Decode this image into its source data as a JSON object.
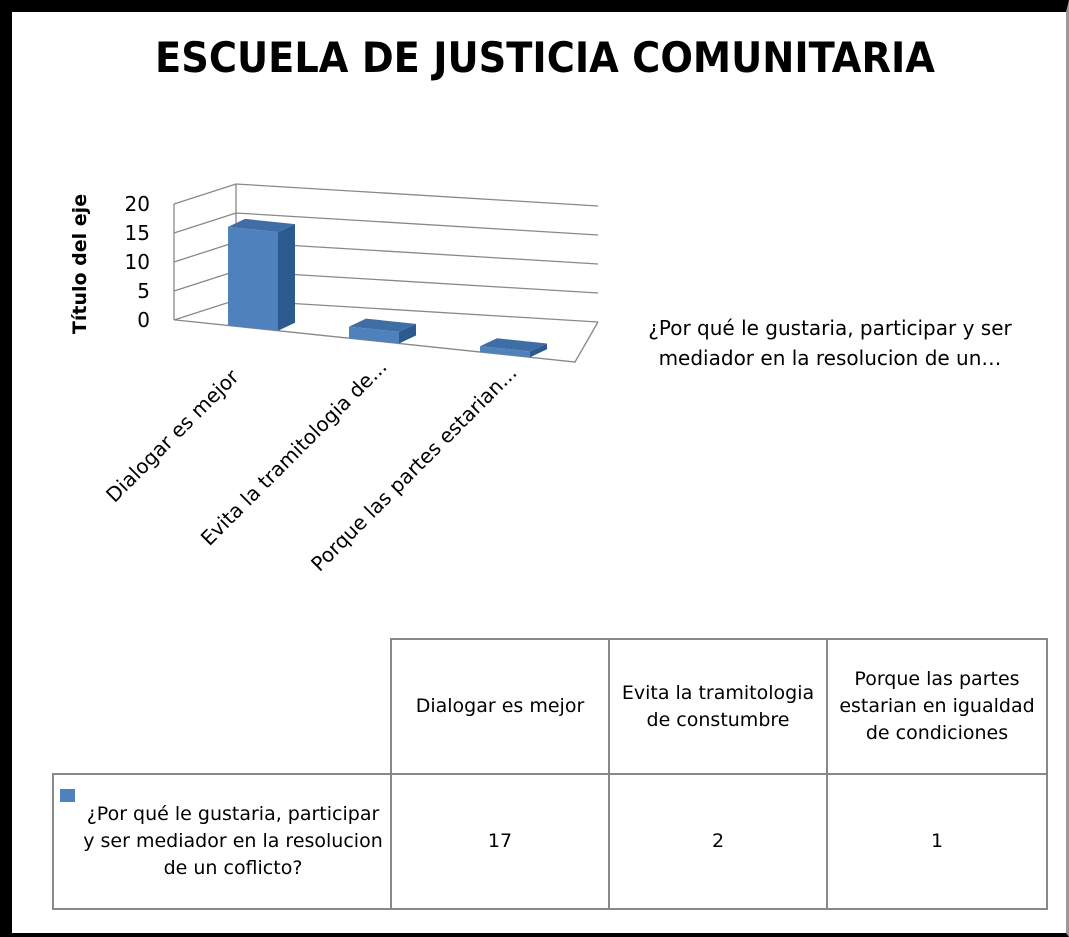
{
  "chart_data": {
    "type": "bar3d",
    "title": "ESCUELA DE JUSTICIA COMUNITARIA",
    "y_axis_title": "Título del eje",
    "categories": [
      "Dialogar es mejor",
      "Evita la tramitologia de...",
      "Porque las partes estarian..."
    ],
    "table_categories": [
      "Dialogar es mejor",
      "Evita la tramitologia de constumbre",
      "Porque las partes estarian en igualdad de condiciones"
    ],
    "series": [
      {
        "name": "¿Por qué le gustaria, participar y ser mediador en la resolucion de  un coflicto?",
        "legend_label": "¿Por qué le gustaria, participar y ser mediador en la resolucion de  un…",
        "color": "#4f81bd",
        "values": [
          17,
          2,
          1
        ]
      }
    ],
    "ylim": [
      0,
      20
    ],
    "yticks": [
      0,
      5,
      10,
      15,
      20
    ],
    "grid": true
  }
}
